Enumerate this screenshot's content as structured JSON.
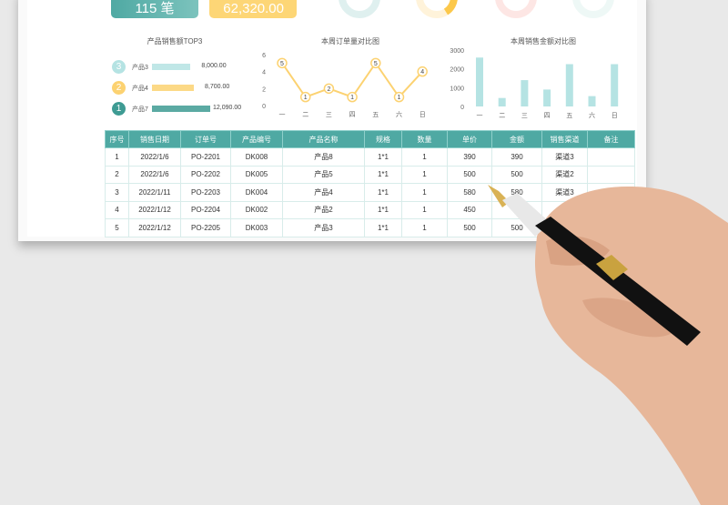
{
  "kpis": [
    {
      "value": "115 笔",
      "color": "#5aaea8"
    },
    {
      "value": "62,320.00",
      "color": "#fdd676"
    }
  ],
  "donuts": [
    {
      "color": "#dff0ef",
      "accent": "#dff0ef"
    },
    {
      "color": "#fff3da",
      "accent": "#fcc84a"
    },
    {
      "color": "#fde6e4",
      "accent": "#fde6e4"
    },
    {
      "color": "#eef8f6",
      "accent": "#eef8f6"
    }
  ],
  "top3": {
    "title": "产品销售额TOP3",
    "items": [
      {
        "rank": "3",
        "name": "产品3",
        "value": 8000,
        "label": "8,000.00",
        "color": "#b5e3e3"
      },
      {
        "rank": "2",
        "name": "产品4",
        "value": 8700,
        "label": "8,700.00",
        "color": "#fcd271"
      },
      {
        "rank": "1",
        "name": "产品7",
        "value": 12090,
        "label": "12,090.00",
        "color": "#3e9b93"
      }
    ]
  },
  "chart_data": [
    {
      "type": "line",
      "title": "本周订单量对比图",
      "categories": [
        "一",
        "二",
        "三",
        "四",
        "五",
        "六",
        "日"
      ],
      "values": [
        5,
        1,
        2,
        1,
        5,
        1,
        4
      ],
      "ylim": [
        0,
        6
      ],
      "yticks": [
        "0",
        "2",
        "4",
        "6"
      ],
      "color": "#fcd271"
    },
    {
      "type": "bar",
      "title": "本周销售金额对比图",
      "categories": [
        "一",
        "二",
        "三",
        "四",
        "五",
        "六",
        "日"
      ],
      "values": [
        2600,
        450,
        1400,
        900,
        2250,
        550,
        2250
      ],
      "ylim": [
        0,
        3000
      ],
      "yticks": [
        "0",
        "1000",
        "2000",
        "3000"
      ],
      "color": "#b5e3e3"
    }
  ],
  "table": {
    "headers": [
      "序号",
      "销售日期",
      "订单号",
      "产品编号",
      "产品名称",
      "规格",
      "数量",
      "单价",
      "金额",
      "销售渠道",
      "备注"
    ],
    "rows": [
      [
        "1",
        "2022/1/6",
        "PO-2201",
        "DK008",
        "产品8",
        "1*1",
        "1",
        "390",
        "390",
        "渠道3",
        ""
      ],
      [
        "2",
        "2022/1/6",
        "PO-2202",
        "DK005",
        "产品5",
        "1*1",
        "1",
        "500",
        "500",
        "渠道2",
        ""
      ],
      [
        "3",
        "2022/1/11",
        "PO-2203",
        "DK004",
        "产品4",
        "1*1",
        "1",
        "580",
        "580",
        "渠道3",
        ""
      ],
      [
        "4",
        "2022/1/12",
        "PO-2204",
        "DK002",
        "产品2",
        "1*1",
        "1",
        "450",
        "",
        "",
        ""
      ],
      [
        "5",
        "2022/1/12",
        "PO-2205",
        "DK003",
        "产品3",
        "1*1",
        "1",
        "500",
        "500",
        "",
        ""
      ]
    ]
  }
}
